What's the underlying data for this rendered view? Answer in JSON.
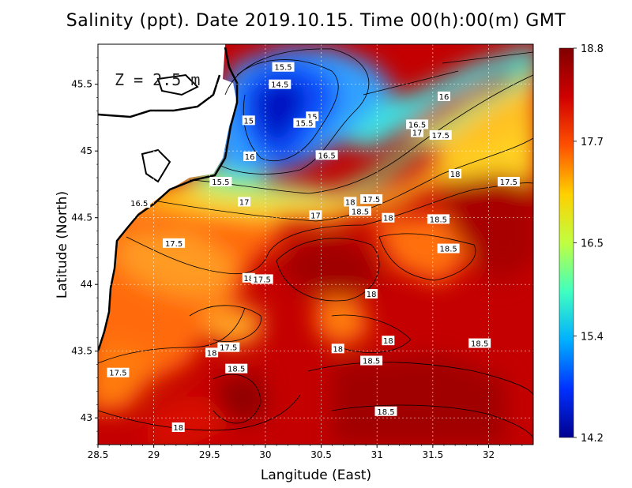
{
  "chart_data": {
    "type": "heatmap",
    "title": "Salinity (ppt). Date 2019.10.15. Time 00(h):00(m) GMT",
    "xlabel": "Langitude (East)",
    "ylabel": "Latitude (North)",
    "annotation": "Z = 2.5 m",
    "xlim": [
      28.5,
      32.4
    ],
    "ylim": [
      42.8,
      45.8
    ],
    "x_ticks": [
      "28.5",
      "29",
      "29.5",
      "30",
      "30.5",
      "31",
      "31.5",
      "32"
    ],
    "y_ticks": [
      "43",
      "43.5",
      "44",
      "44.5",
      "45",
      "45.5"
    ],
    "grid": true,
    "colorbar": {
      "min": 14.2,
      "max": 18.8,
      "ticks": [
        "18.8",
        "17.7",
        "16.5",
        "15.4",
        "14.2"
      ],
      "colors": [
        "#00008f",
        "#0030ff",
        "#00b0ff",
        "#40ffc0",
        "#c0ff40",
        "#ffd000",
        "#ff5000",
        "#d00000",
        "#800000"
      ]
    },
    "contour_labels": [
      {
        "text": "15.5",
        "lon": 30.16,
        "lat": 45.63
      },
      {
        "text": "14.5",
        "lon": 30.13,
        "lat": 45.5
      },
      {
        "text": "15",
        "lon": 30.42,
        "lat": 45.26
      },
      {
        "text": "15.5",
        "lon": 30.35,
        "lat": 45.21
      },
      {
        "text": "15",
        "lon": 29.85,
        "lat": 45.23
      },
      {
        "text": "16",
        "lon": 31.6,
        "lat": 45.41
      },
      {
        "text": "16.5",
        "lon": 30.55,
        "lat": 44.97
      },
      {
        "text": "16",
        "lon": 29.86,
        "lat": 44.96
      },
      {
        "text": "16.5",
        "lon": 31.36,
        "lat": 45.2
      },
      {
        "text": "17",
        "lon": 31.36,
        "lat": 45.14
      },
      {
        "text": "17.5",
        "lon": 31.57,
        "lat": 45.12
      },
      {
        "text": "15.5",
        "lon": 29.6,
        "lat": 44.77
      },
      {
        "text": "18",
        "lon": 31.7,
        "lat": 44.83
      },
      {
        "text": "17.5",
        "lon": 32.18,
        "lat": 44.77
      },
      {
        "text": "16.5",
        "lon": 28.87,
        "lat": 44.61
      },
      {
        "text": "17",
        "lon": 29.81,
        "lat": 44.62
      },
      {
        "text": "18",
        "lon": 30.76,
        "lat": 44.62
      },
      {
        "text": "17.5",
        "lon": 30.95,
        "lat": 44.64
      },
      {
        "text": "18.5",
        "lon": 30.85,
        "lat": 44.55
      },
      {
        "text": "18",
        "lon": 31.1,
        "lat": 44.5
      },
      {
        "text": "18.5",
        "lon": 31.55,
        "lat": 44.49
      },
      {
        "text": "17",
        "lon": 30.45,
        "lat": 44.52
      },
      {
        "text": "17.5",
        "lon": 29.18,
        "lat": 44.31
      },
      {
        "text": "18.5",
        "lon": 31.64,
        "lat": 44.27
      },
      {
        "text": "18",
        "lon": 29.85,
        "lat": 44.05
      },
      {
        "text": "17.5",
        "lon": 29.97,
        "lat": 44.04
      },
      {
        "text": "18",
        "lon": 30.95,
        "lat": 43.93
      },
      {
        "text": "18",
        "lon": 31.1,
        "lat": 43.58
      },
      {
        "text": "18",
        "lon": 30.65,
        "lat": 43.52
      },
      {
        "text": "17.5",
        "lon": 29.67,
        "lat": 43.53
      },
      {
        "text": "18",
        "lon": 29.52,
        "lat": 43.49
      },
      {
        "text": "18.5",
        "lon": 31.92,
        "lat": 43.56
      },
      {
        "text": "18.5",
        "lon": 30.95,
        "lat": 43.43
      },
      {
        "text": "17.5",
        "lon": 28.68,
        "lat": 43.34
      },
      {
        "text": "18.5",
        "lon": 29.74,
        "lat": 43.37
      },
      {
        "text": "18.5",
        "lon": 31.08,
        "lat": 43.05
      },
      {
        "text": "18",
        "lon": 29.22,
        "lat": 42.93
      }
    ]
  }
}
